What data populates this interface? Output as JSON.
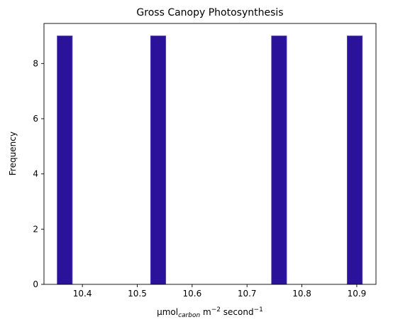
{
  "chart_data": {
    "type": "bar",
    "title": "Gross Canopy Photosynthesis",
    "xlabel": {
      "prefix": "μmol",
      "sub": "carbon",
      "mid": " m",
      "sup1": "−2",
      "mid2": " second",
      "sup2": "−1"
    },
    "ylabel": "Frequency",
    "xlim": [
      10.33,
      10.935
    ],
    "ylim": [
      0,
      9.45
    ],
    "bin_width": 0.02764,
    "bins": [
      {
        "x_start": 10.354,
        "count": 9
      },
      {
        "x_start": 10.5243,
        "count": 9
      },
      {
        "x_start": 10.7446,
        "count": 9
      },
      {
        "x_start": 10.8825,
        "count": 9
      }
    ],
    "x_ticks": [
      {
        "value": 10.4,
        "label": "10.4"
      },
      {
        "value": 10.5,
        "label": "10.5"
      },
      {
        "value": 10.6,
        "label": "10.6"
      },
      {
        "value": 10.7,
        "label": "10.7"
      },
      {
        "value": 10.8,
        "label": "10.8"
      },
      {
        "value": 10.9,
        "label": "10.9"
      }
    ],
    "y_ticks": [
      {
        "value": 0,
        "label": "0"
      },
      {
        "value": 2,
        "label": "2"
      },
      {
        "value": 4,
        "label": "4"
      },
      {
        "value": 6,
        "label": "6"
      },
      {
        "value": 8,
        "label": "8"
      }
    ],
    "bar_color": "#2a129b",
    "bar_edge_color": "#5a4fb0",
    "grid": false,
    "legend": "none"
  }
}
